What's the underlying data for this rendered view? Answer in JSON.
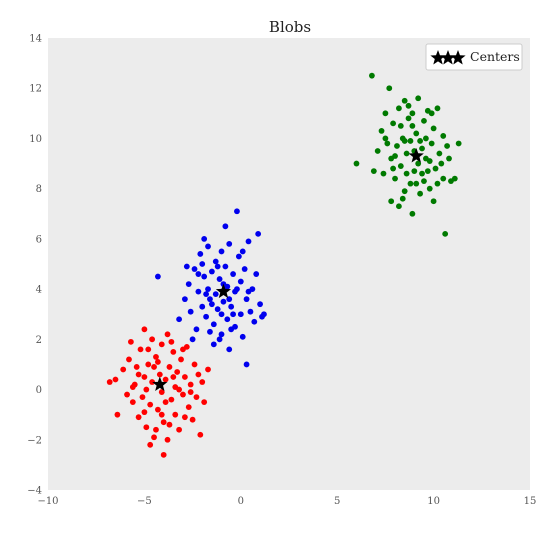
{
  "chart_data": {
    "type": "scatter",
    "title": "Blobs",
    "xlabel": "",
    "ylabel": "",
    "xlim": [
      -10,
      15
    ],
    "ylim": [
      -4,
      14
    ],
    "x_ticks": [
      -10,
      -5,
      0,
      5,
      10,
      15
    ],
    "y_ticks": [
      -4,
      -2,
      0,
      2,
      4,
      6,
      8,
      10,
      12,
      14
    ],
    "x_tick_labels": [
      "−10",
      "−5",
      "0",
      "5",
      "10",
      "15"
    ],
    "y_tick_labels": [
      "−4",
      "−2",
      "0",
      "2",
      "4",
      "6",
      "8",
      "10",
      "12",
      "14"
    ],
    "grid": false,
    "background": "#ececec",
    "legend": {
      "position": "top-right",
      "entries": [
        "Centers"
      ]
    },
    "series": [
      {
        "color": "#ff0000",
        "center": [
          -4.2,
          0.2
        ],
        "points": [
          [
            -6.8,
            0.3
          ],
          [
            -6.5,
            0.4
          ],
          [
            -6.4,
            -1.0
          ],
          [
            -6.1,
            0.8
          ],
          [
            -5.9,
            -0.2
          ],
          [
            -5.8,
            1.2
          ],
          [
            -5.6,
            -0.5
          ],
          [
            -5.5,
            0.2
          ],
          [
            -5.4,
            0.9
          ],
          [
            -5.3,
            -1.1
          ],
          [
            -5.2,
            1.6
          ],
          [
            -5.1,
            -0.3
          ],
          [
            -5.0,
            0.5
          ],
          [
            -5.0,
            2.4
          ],
          [
            -4.9,
            -1.5
          ],
          [
            -4.8,
            1.0
          ],
          [
            -4.7,
            -0.6
          ],
          [
            -4.6,
            0.3
          ],
          [
            -4.6,
            2.0
          ],
          [
            -4.5,
            -1.9
          ],
          [
            -4.4,
            1.3
          ],
          [
            -4.3,
            -0.8
          ],
          [
            -4.2,
            0.6
          ],
          [
            -4.1,
            -0.1
          ],
          [
            -4.1,
            1.8
          ],
          [
            -4.0,
            -1.3
          ],
          [
            -3.9,
            0.4
          ],
          [
            -3.8,
            2.2
          ],
          [
            -3.8,
            -2.0
          ],
          [
            -3.7,
            0.9
          ],
          [
            -3.6,
            -0.4
          ],
          [
            -3.5,
            1.5
          ],
          [
            -3.4,
            0.1
          ],
          [
            -3.4,
            -1.0
          ],
          [
            -3.3,
            0.7
          ],
          [
            -3.2,
            -1.6
          ],
          [
            -3.1,
            1.2
          ],
          [
            -3.0,
            -0.2
          ],
          [
            -2.9,
            0.5
          ],
          [
            -2.8,
            1.7
          ],
          [
            -2.7,
            -0.7
          ],
          [
            -2.6,
            0.2
          ],
          [
            -2.5,
            -1.2
          ],
          [
            -2.4,
            1.0
          ],
          [
            -2.3,
            -0.3
          ],
          [
            -2.2,
            0.6
          ],
          [
            -2.1,
            -1.8
          ],
          [
            -2.0,
            0.3
          ],
          [
            -1.9,
            -0.5
          ],
          [
            -1.7,
            0.8
          ],
          [
            -4.0,
            -2.6
          ],
          [
            -4.4,
            -1.6
          ],
          [
            -3.6,
            1.9
          ],
          [
            -5.7,
            1.9
          ],
          [
            -4.9,
            0.0
          ],
          [
            -3.2,
            0.0
          ],
          [
            -4.7,
            -2.2
          ],
          [
            -3.9,
            -0.5
          ],
          [
            -5.3,
            0.6
          ],
          [
            -2.9,
            -1.1
          ],
          [
            -4.5,
            0.9
          ],
          [
            -3.7,
            -1.4
          ],
          [
            -5.0,
            -0.9
          ],
          [
            -3.0,
            1.6
          ],
          [
            -4.3,
            1.1
          ],
          [
            -2.6,
            -0.1
          ],
          [
            -5.6,
            0.1
          ],
          [
            -4.1,
            -1.0
          ],
          [
            -3.5,
            0.5
          ],
          [
            -4.8,
            1.6
          ]
        ]
      },
      {
        "color": "#0000ee",
        "center": [
          -0.9,
          3.9
        ],
        "points": [
          [
            -4.3,
            4.5
          ],
          [
            -3.2,
            2.8
          ],
          [
            -2.9,
            3.6
          ],
          [
            -2.7,
            4.2
          ],
          [
            -2.6,
            3.1
          ],
          [
            -2.4,
            4.8
          ],
          [
            -2.3,
            2.4
          ],
          [
            -2.2,
            3.9
          ],
          [
            -2.1,
            5.4
          ],
          [
            -2.0,
            3.3
          ],
          [
            -1.9,
            4.5
          ],
          [
            -1.8,
            2.9
          ],
          [
            -1.7,
            4.0
          ],
          [
            -1.7,
            5.7
          ],
          [
            -1.6,
            3.6
          ],
          [
            -1.5,
            4.7
          ],
          [
            -1.4,
            2.6
          ],
          [
            -1.3,
            3.8
          ],
          [
            -1.3,
            5.1
          ],
          [
            -1.2,
            3.2
          ],
          [
            -1.1,
            4.4
          ],
          [
            -1.0,
            2.2
          ],
          [
            -1.0,
            5.5
          ],
          [
            -0.9,
            3.5
          ],
          [
            -0.8,
            4.9
          ],
          [
            -0.7,
            2.8
          ],
          [
            -0.7,
            4.1
          ],
          [
            -0.6,
            1.6
          ],
          [
            -0.6,
            5.8
          ],
          [
            -0.5,
            3.3
          ],
          [
            -0.4,
            4.6
          ],
          [
            -0.3,
            2.5
          ],
          [
            -0.3,
            3.9
          ],
          [
            -0.2,
            7.1
          ],
          [
            -0.1,
            5.3
          ],
          [
            0.0,
            3.0
          ],
          [
            0.0,
            4.3
          ],
          [
            0.1,
            2.1
          ],
          [
            0.2,
            4.8
          ],
          [
            0.3,
            3.6
          ],
          [
            0.3,
            1.0
          ],
          [
            0.4,
            5.9
          ],
          [
            0.5,
            3.1
          ],
          [
            0.6,
            4.0
          ],
          [
            0.7,
            2.7
          ],
          [
            0.8,
            4.6
          ],
          [
            0.9,
            6.2
          ],
          [
            1.0,
            3.4
          ],
          [
            1.1,
            2.9
          ],
          [
            1.2,
            3.0
          ],
          [
            -2.5,
            2.0
          ],
          [
            -1.9,
            6.0
          ],
          [
            -1.4,
            1.8
          ],
          [
            -0.8,
            6.5
          ],
          [
            -2.8,
            4.9
          ],
          [
            -1.1,
            2.0
          ],
          [
            0.1,
            5.5
          ],
          [
            -1.6,
            2.3
          ],
          [
            -0.4,
            3.0
          ],
          [
            -2.2,
            4.6
          ],
          [
            -0.9,
            4.2
          ],
          [
            -1.5,
            3.4
          ],
          [
            -0.2,
            4.0
          ],
          [
            -2.0,
            5.0
          ],
          [
            -0.5,
            2.4
          ],
          [
            -1.2,
            4.9
          ],
          [
            -0.6,
            3.6
          ],
          [
            -1.8,
            3.8
          ],
          [
            0.4,
            3.9
          ],
          [
            -1.0,
            3.0
          ]
        ]
      },
      {
        "color": "#007a00",
        "center": [
          9.1,
          9.3
        ],
        "points": [
          [
            6.0,
            9.0
          ],
          [
            6.8,
            12.5
          ],
          [
            6.9,
            8.7
          ],
          [
            7.1,
            9.5
          ],
          [
            7.3,
            10.3
          ],
          [
            7.4,
            8.6
          ],
          [
            7.5,
            11.0
          ],
          [
            7.6,
            9.8
          ],
          [
            7.7,
            12.0
          ],
          [
            7.8,
            7.5
          ],
          [
            7.8,
            9.2
          ],
          [
            7.9,
            10.6
          ],
          [
            8.0,
            8.4
          ],
          [
            8.1,
            9.7
          ],
          [
            8.2,
            11.2
          ],
          [
            8.2,
            7.3
          ],
          [
            8.3,
            8.9
          ],
          [
            8.4,
            10.0
          ],
          [
            8.5,
            7.9
          ],
          [
            8.5,
            11.5
          ],
          [
            8.6,
            9.4
          ],
          [
            8.7,
            10.8
          ],
          [
            8.8,
            8.2
          ],
          [
            8.8,
            9.9
          ],
          [
            8.9,
            7.0
          ],
          [
            8.9,
            11.0
          ],
          [
            9.0,
            8.7
          ],
          [
            9.1,
            10.2
          ],
          [
            9.2,
            9.0
          ],
          [
            9.2,
            11.6
          ],
          [
            9.3,
            7.8
          ],
          [
            9.4,
            9.6
          ],
          [
            9.5,
            10.7
          ],
          [
            9.5,
            8.3
          ],
          [
            9.6,
            9.2
          ],
          [
            9.7,
            11.1
          ],
          [
            9.8,
            8.0
          ],
          [
            9.9,
            9.8
          ],
          [
            10.0,
            10.4
          ],
          [
            10.0,
            7.5
          ],
          [
            10.1,
            8.8
          ],
          [
            10.2,
            11.2
          ],
          [
            10.3,
            9.4
          ],
          [
            10.5,
            8.4
          ],
          [
            10.5,
            10.1
          ],
          [
            10.6,
            6.2
          ],
          [
            10.8,
            9.2
          ],
          [
            10.9,
            8.3
          ],
          [
            11.1,
            8.4
          ],
          [
            11.3,
            9.8
          ],
          [
            8.3,
            10.5
          ],
          [
            8.6,
            8.6
          ],
          [
            9.0,
            9.5
          ],
          [
            9.4,
            8.6
          ],
          [
            8.7,
            11.3
          ],
          [
            9.8,
            9.1
          ],
          [
            8.0,
            9.3
          ],
          [
            9.6,
            10.0
          ],
          [
            10.4,
            9.0
          ],
          [
            8.5,
            9.9
          ],
          [
            9.1,
            8.2
          ],
          [
            7.5,
            10.0
          ],
          [
            9.9,
            11.0
          ],
          [
            10.7,
            9.7
          ],
          [
            8.9,
            10.5
          ],
          [
            9.3,
            9.9
          ],
          [
            7.9,
            8.8
          ],
          [
            10.2,
            8.2
          ],
          [
            8.4,
            7.6
          ],
          [
            9.7,
            8.7
          ]
        ]
      }
    ],
    "centers": {
      "name": "Centers",
      "color": "#000000",
      "points": [
        [
          -4.2,
          0.2
        ],
        [
          -0.9,
          3.9
        ],
        [
          9.1,
          9.3
        ]
      ]
    }
  }
}
